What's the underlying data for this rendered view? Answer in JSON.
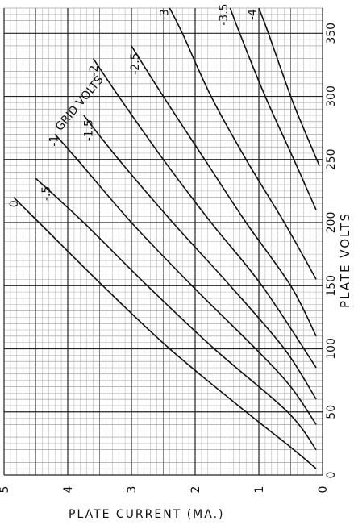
{
  "chart_data": {
    "type": "line",
    "title": "",
    "xlabel": "PLATE VOLTS",
    "ylabel": "PLATE CURRENT (MA.)",
    "xlim": [
      0,
      370
    ],
    "ylim": [
      0,
      5
    ],
    "x_ticks": [
      "0",
      "50",
      "100",
      "150",
      "200",
      "250",
      "300",
      "350"
    ],
    "y_ticks": [
      "0",
      "1",
      "2",
      "3",
      "4",
      "5"
    ],
    "grid": true,
    "legend_title": "GRID VOLTS",
    "series": [
      {
        "name": "0",
        "points": [
          [
            5,
            0.1
          ],
          [
            20,
            0.45
          ],
          [
            50,
            1.2
          ],
          [
            100,
            2.4
          ],
          [
            150,
            3.45
          ],
          [
            200,
            4.45
          ],
          [
            220,
            4.85
          ]
        ]
      },
      {
        "name": "-.5",
        "points": [
          [
            20,
            0.1
          ],
          [
            50,
            0.55
          ],
          [
            100,
            1.7
          ],
          [
            150,
            2.75
          ],
          [
            200,
            3.75
          ],
          [
            235,
            4.5
          ]
        ]
      },
      {
        "name": "-1",
        "points": [
          [
            40,
            0.1
          ],
          [
            70,
            0.5
          ],
          [
            100,
            1.05
          ],
          [
            150,
            2.05
          ],
          [
            200,
            3.0
          ],
          [
            250,
            3.85
          ],
          [
            270,
            4.2
          ]
        ]
      },
      {
        "name": "-1.5",
        "points": [
          [
            60,
            0.1
          ],
          [
            100,
            0.6
          ],
          [
            150,
            1.45
          ],
          [
            200,
            2.35
          ],
          [
            250,
            3.2
          ],
          [
            285,
            3.75
          ]
        ]
      },
      {
        "name": "-2",
        "points": [
          [
            85,
            0.1
          ],
          [
            150,
            0.95
          ],
          [
            200,
            1.75
          ],
          [
            250,
            2.5
          ],
          [
            300,
            3.2
          ],
          [
            330,
            3.6
          ]
        ]
      },
      {
        "name": "-2.5",
        "points": [
          [
            110,
            0.1
          ],
          [
            150,
            0.5
          ],
          [
            200,
            1.2
          ],
          [
            250,
            1.85
          ],
          [
            300,
            2.5
          ],
          [
            340,
            3.0
          ]
        ]
      },
      {
        "name": "-3",
        "points": [
          [
            155,
            0.1
          ],
          [
            200,
            0.6
          ],
          [
            250,
            1.2
          ],
          [
            300,
            1.75
          ],
          [
            350,
            2.2
          ],
          [
            370,
            2.4
          ]
        ]
      },
      {
        "name": "-3.5",
        "points": [
          [
            210,
            0.1
          ],
          [
            250,
            0.45
          ],
          [
            300,
            0.9
          ],
          [
            350,
            1.3
          ],
          [
            370,
            1.45
          ]
        ]
      },
      {
        "name": "-4",
        "points": [
          [
            245,
            0.05
          ],
          [
            275,
            0.3
          ],
          [
            300,
            0.5
          ],
          [
            350,
            0.85
          ],
          [
            370,
            1.0
          ]
        ]
      }
    ]
  }
}
